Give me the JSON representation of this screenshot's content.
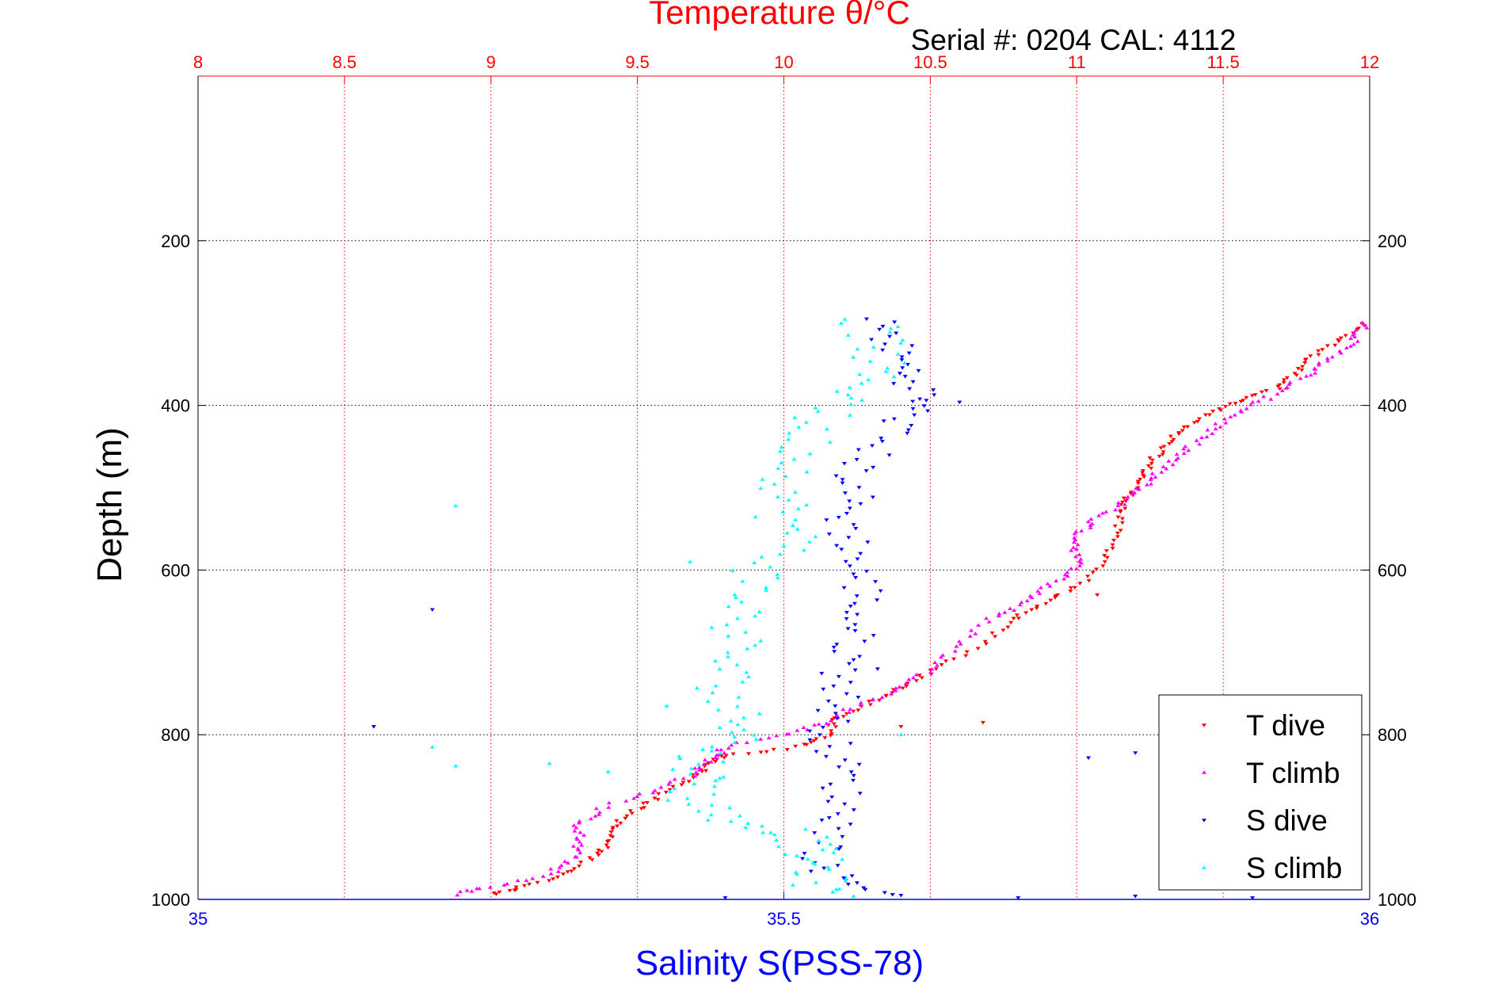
{
  "chart_data": {
    "type": "scatter",
    "title": "Temperature θ/°C",
    "subtitle": "Serial #: 0204  CAL: 4112",
    "ylabel": "Depth (m)",
    "xlabel_bottom": "Salinity S(PSS-78)",
    "xlabel_top": "Temperature θ/°C",
    "y_axis": {
      "reversed": true,
      "ylim": [
        0,
        1000
      ],
      "ticks": [
        200,
        400,
        600,
        800,
        1000
      ],
      "tick_labels": [
        "200",
        "400",
        "600",
        "800",
        "1000"
      ]
    },
    "x_axis_top": {
      "xlim": [
        8,
        12
      ],
      "ticks": [
        8,
        8.5,
        9,
        9.5,
        10,
        10.5,
        11,
        11.5,
        12
      ],
      "tick_labels": [
        "8",
        "8.5",
        "9",
        "9.5",
        "10",
        "10.5",
        "11",
        "11.5",
        "12"
      ],
      "color": "#ff0000"
    },
    "x_axis_bottom": {
      "xlim": [
        35,
        36
      ],
      "ticks": [
        35,
        35.5,
        36
      ],
      "tick_labels": [
        "35",
        "35.5",
        "36"
      ],
      "color": "#0000ff"
    },
    "grid": true,
    "legend_position": "bottom-right",
    "series": [
      {
        "name": "T dive",
        "axis": "top",
        "marker": "down-triangle",
        "color": "#ff0000",
        "profile": [
          [
            300,
            11.98
          ],
          [
            320,
            11.9
          ],
          [
            340,
            11.8
          ],
          [
            360,
            11.75
          ],
          [
            380,
            11.68
          ],
          [
            395,
            11.55
          ],
          [
            410,
            11.45
          ],
          [
            430,
            11.35
          ],
          [
            450,
            11.3
          ],
          [
            470,
            11.25
          ],
          [
            490,
            11.22
          ],
          [
            510,
            11.18
          ],
          [
            530,
            11.15
          ],
          [
            560,
            11.13
          ],
          [
            590,
            11.1
          ],
          [
            620,
            11.0
          ],
          [
            640,
            10.88
          ],
          [
            660,
            10.78
          ],
          [
            690,
            10.68
          ],
          [
            720,
            10.52
          ],
          [
            740,
            10.42
          ],
          [
            760,
            10.3
          ],
          [
            780,
            10.18
          ],
          [
            800,
            10.15
          ],
          [
            815,
            10.05
          ],
          [
            825,
            9.8
          ],
          [
            835,
            9.75
          ],
          [
            850,
            9.7
          ],
          [
            870,
            9.6
          ],
          [
            890,
            9.5
          ],
          [
            910,
            9.42
          ],
          [
            930,
            9.4
          ],
          [
            950,
            9.35
          ],
          [
            970,
            9.25
          ],
          [
            985,
            9.1
          ],
          [
            995,
            9.0
          ]
        ],
        "n_per_segment": 7,
        "jitter_x": 0.015,
        "outliers": [
          [
            10.4,
            790
          ],
          [
            11.07,
            630
          ],
          [
            10.68,
            785
          ]
        ]
      },
      {
        "name": "T climb",
        "axis": "top",
        "marker": "up-triangle",
        "color": "#ff00ff",
        "profile": [
          [
            300,
            11.99
          ],
          [
            320,
            11.95
          ],
          [
            340,
            11.88
          ],
          [
            360,
            11.8
          ],
          [
            380,
            11.7
          ],
          [
            400,
            11.6
          ],
          [
            420,
            11.5
          ],
          [
            440,
            11.42
          ],
          [
            460,
            11.35
          ],
          [
            480,
            11.28
          ],
          [
            500,
            11.22
          ],
          [
            520,
            11.15
          ],
          [
            540,
            11.05
          ],
          [
            560,
            11.0
          ],
          [
            580,
            11.0
          ],
          [
            600,
            11.0
          ],
          [
            620,
            10.9
          ],
          [
            640,
            10.82
          ],
          [
            660,
            10.7
          ],
          [
            690,
            10.6
          ],
          [
            720,
            10.5
          ],
          [
            745,
            10.4
          ],
          [
            765,
            10.25
          ],
          [
            785,
            10.15
          ],
          [
            800,
            10.0
          ],
          [
            815,
            9.8
          ],
          [
            830,
            9.75
          ],
          [
            850,
            9.68
          ],
          [
            870,
            9.55
          ],
          [
            890,
            9.37
          ],
          [
            910,
            9.3
          ],
          [
            930,
            9.3
          ],
          [
            950,
            9.28
          ],
          [
            970,
            9.2
          ],
          [
            985,
            9.0
          ],
          [
            995,
            8.85
          ]
        ],
        "n_per_segment": 7,
        "jitter_x": 0.02,
        "outliers": []
      },
      {
        "name": "S dive",
        "axis": "bottom",
        "marker": "down-triangle",
        "color": "#0000ff",
        "profile": [
          [
            295,
            35.58
          ],
          [
            320,
            35.59
          ],
          [
            345,
            35.6
          ],
          [
            370,
            35.61
          ],
          [
            395,
            35.62
          ],
          [
            420,
            35.6
          ],
          [
            450,
            35.58
          ],
          [
            480,
            35.56
          ],
          [
            510,
            35.56
          ],
          [
            540,
            35.55
          ],
          [
            570,
            35.56
          ],
          [
            600,
            35.56
          ],
          [
            630,
            35.57
          ],
          [
            660,
            35.56
          ],
          [
            690,
            35.56
          ],
          [
            720,
            35.55
          ],
          [
            750,
            35.55
          ],
          [
            780,
            35.54
          ],
          [
            810,
            35.54
          ],
          [
            840,
            35.55
          ],
          [
            870,
            35.55
          ],
          [
            900,
            35.55
          ],
          [
            930,
            35.54
          ],
          [
            960,
            35.53
          ],
          [
            980,
            35.56
          ],
          [
            998,
            35.6
          ]
        ],
        "n_per_segment": 6,
        "jitter_x": 0.018,
        "outliers": [
          [
            35.15,
            790
          ],
          [
            35.61,
            395
          ],
          [
            35.65,
            396
          ],
          [
            35.2,
            648
          ],
          [
            35.8,
            822
          ],
          [
            35.76,
            828
          ],
          [
            35.88,
            828
          ],
          [
            35.95,
            825
          ],
          [
            35.58,
            720
          ],
          [
            35.7,
            998
          ],
          [
            35.8,
            996
          ],
          [
            35.9,
            998
          ],
          [
            35.45,
            998
          ],
          [
            35.6,
            995
          ]
        ]
      },
      {
        "name": "S climb",
        "axis": "bottom",
        "marker": "up-triangle",
        "color": "#00ffff",
        "profile": [
          [
            295,
            35.57
          ],
          [
            320,
            35.58
          ],
          [
            345,
            35.58
          ],
          [
            370,
            35.57
          ],
          [
            395,
            35.56
          ],
          [
            420,
            35.52
          ],
          [
            450,
            35.52
          ],
          [
            480,
            35.51
          ],
          [
            510,
            35.5
          ],
          [
            540,
            35.5
          ],
          [
            570,
            35.51
          ],
          [
            600,
            35.48
          ],
          [
            630,
            35.47
          ],
          [
            660,
            35.46
          ],
          [
            690,
            35.46
          ],
          [
            720,
            35.45
          ],
          [
            750,
            35.45
          ],
          [
            780,
            35.46
          ],
          [
            800,
            35.48
          ],
          [
            820,
            35.43
          ],
          [
            840,
            35.43
          ],
          [
            860,
            35.43
          ],
          [
            880,
            35.42
          ],
          [
            900,
            35.45
          ],
          [
            915,
            35.5
          ],
          [
            930,
            35.52
          ],
          [
            945,
            35.52
          ],
          [
            960,
            35.53
          ],
          [
            980,
            35.53
          ],
          [
            998,
            35.54
          ]
        ],
        "n_per_segment": 6,
        "jitter_x": 0.025,
        "outliers": [
          [
            35.35,
            845
          ],
          [
            35.3,
            835
          ],
          [
            35.2,
            815
          ],
          [
            35.22,
            838
          ],
          [
            35.4,
            765
          ],
          [
            35.42,
            590
          ],
          [
            35.22,
            522
          ],
          [
            35.6,
            800
          ]
        ]
      }
    ]
  }
}
